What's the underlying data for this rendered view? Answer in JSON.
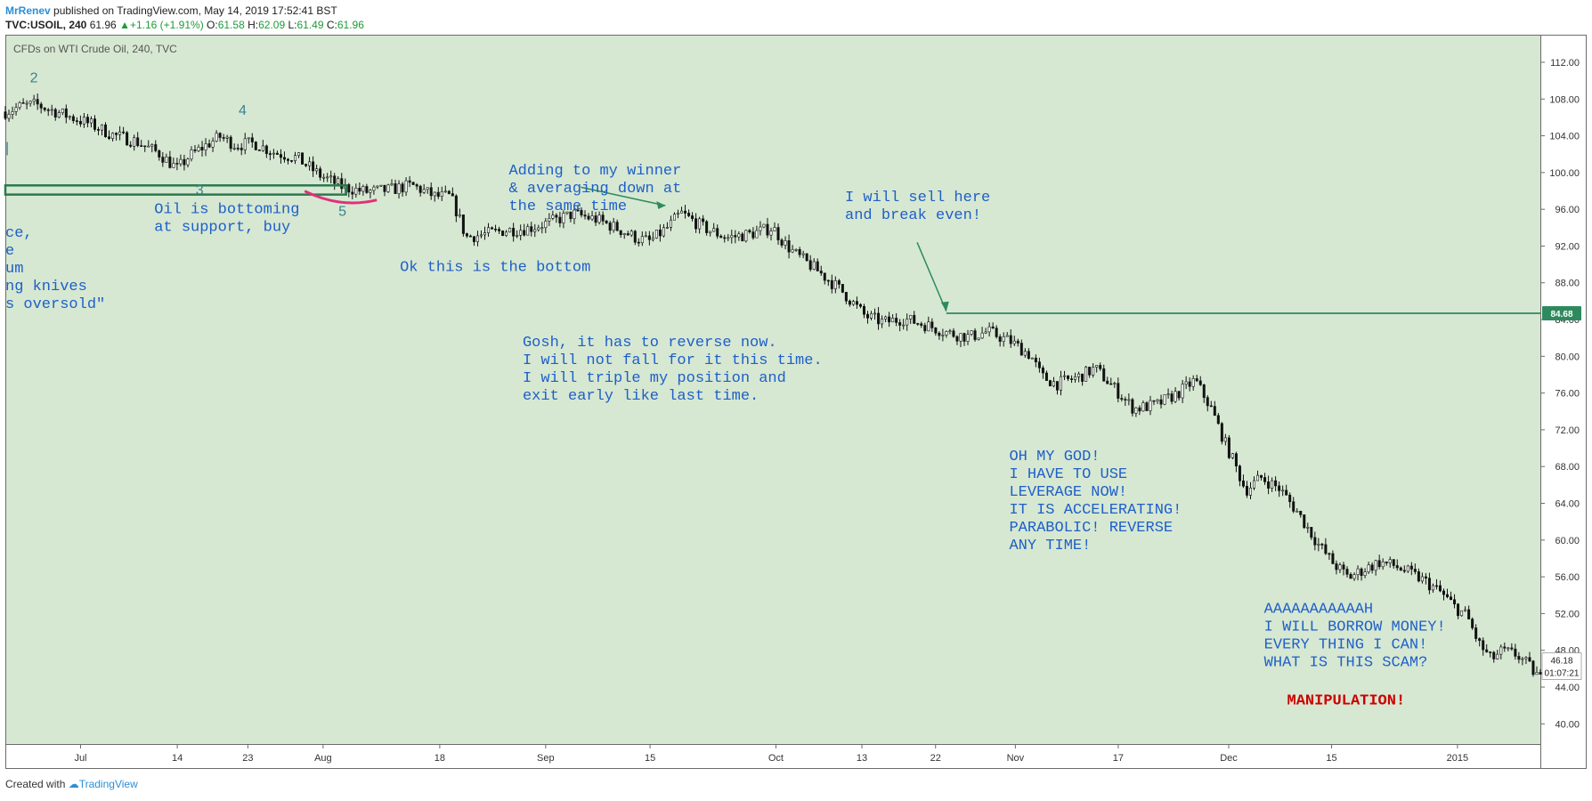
{
  "header": {
    "user": "MrRenev",
    "published": " published on TradingView.com, May 14, 2019 17:52:41 BST",
    "symbol": "TVC:USOIL, 240",
    "last": "61.96",
    "change_arrow": "▲",
    "change": "+1.16 (+1.91%)",
    "o_label": "O:",
    "o_val": "61.58",
    "h_label": "H:",
    "h_val": "62.09",
    "l_label": "L:",
    "l_val": "61.49",
    "c_label": "C:",
    "c_val": "61.96"
  },
  "footer": {
    "created": "Created with ",
    "brand": "TradingView"
  },
  "colors": {
    "plot_bg": "#d6e8d2",
    "annotation": "#1f5fc9",
    "manipulation": "#cc0000",
    "line_green": "#2e8a5e",
    "wave_label": "#3a8290",
    "arc": "#e0307a"
  },
  "chart_data": {
    "type": "candlestick",
    "title": "CFDs on WTI Crude Oil, 240, TVC",
    "x_ticks": [
      "Jul",
      "14",
      "23",
      "Aug",
      "18",
      "Sep",
      "15",
      "Oct",
      "13",
      "22",
      "Nov",
      "17",
      "Dec",
      "15",
      "2015"
    ],
    "y_ticks": [
      "112.00",
      "108.00",
      "104.00",
      "100.00",
      "96.00",
      "92.00",
      "88.00",
      "84.00",
      "80.00",
      "76.00",
      "72.00",
      "68.00",
      "64.00",
      "60.00",
      "56.00",
      "52.00",
      "48.00",
      "44.00",
      "40.00"
    ],
    "ylim": [
      37.8,
      115.0
    ],
    "price_path": [
      [
        0.0,
        106.6
      ],
      [
        0.01,
        107.2
      ],
      [
        0.02,
        107.4
      ],
      [
        0.04,
        106.2
      ],
      [
        0.055,
        105.3
      ],
      [
        0.07,
        104.1
      ],
      [
        0.085,
        103.4
      ],
      [
        0.1,
        102.1
      ],
      [
        0.112,
        100.4
      ],
      [
        0.12,
        101.8
      ],
      [
        0.13,
        102.9
      ],
      [
        0.14,
        103.9
      ],
      [
        0.15,
        103.0
      ],
      [
        0.162,
        103.2
      ],
      [
        0.175,
        102.2
      ],
      [
        0.19,
        101.6
      ],
      [
        0.205,
        99.7
      ],
      [
        0.22,
        98.4
      ],
      [
        0.235,
        97.9
      ],
      [
        0.25,
        98.1
      ],
      [
        0.265,
        98.6
      ],
      [
        0.28,
        97.4
      ],
      [
        0.29,
        97.4
      ],
      [
        0.296,
        94.9
      ],
      [
        0.3,
        93.0
      ],
      [
        0.31,
        93.2
      ],
      [
        0.325,
        93.7
      ],
      [
        0.34,
        93.9
      ],
      [
        0.355,
        94.6
      ],
      [
        0.37,
        95.5
      ],
      [
        0.385,
        94.9
      ],
      [
        0.4,
        93.8
      ],
      [
        0.412,
        92.8
      ],
      [
        0.42,
        92.5
      ],
      [
        0.432,
        94.1
      ],
      [
        0.44,
        95.6
      ],
      [
        0.455,
        94.0
      ],
      [
        0.47,
        92.9
      ],
      [
        0.485,
        93.3
      ],
      [
        0.5,
        94.0
      ],
      [
        0.507,
        92.4
      ],
      [
        0.515,
        91.1
      ],
      [
        0.53,
        89.2
      ],
      [
        0.545,
        87.1
      ],
      [
        0.56,
        84.4
      ],
      [
        0.572,
        83.7
      ],
      [
        0.585,
        84.1
      ],
      [
        0.6,
        83.4
      ],
      [
        0.615,
        82.5
      ],
      [
        0.628,
        82.1
      ],
      [
        0.64,
        82.7
      ],
      [
        0.655,
        81.6
      ],
      [
        0.668,
        80.1
      ],
      [
        0.675,
        77.8
      ],
      [
        0.685,
        77.0
      ],
      [
        0.7,
        77.8
      ],
      [
        0.71,
        78.7
      ],
      [
        0.722,
        76.6
      ],
      [
        0.735,
        74.3
      ],
      [
        0.75,
        74.7
      ],
      [
        0.765,
        76.1
      ],
      [
        0.775,
        77.4
      ],
      [
        0.785,
        74.5
      ],
      [
        0.795,
        70.4
      ],
      [
        0.8,
        68.6
      ],
      [
        0.808,
        65.4
      ],
      [
        0.818,
        66.8
      ],
      [
        0.83,
        65.6
      ],
      [
        0.842,
        63.0
      ],
      [
        0.855,
        59.6
      ],
      [
        0.865,
        57.5
      ],
      [
        0.875,
        55.9
      ],
      [
        0.885,
        56.8
      ],
      [
        0.895,
        57.6
      ],
      [
        0.905,
        57.2
      ],
      [
        0.915,
        56.4
      ],
      [
        0.925,
        55.5
      ],
      [
        0.935,
        54.3
      ],
      [
        0.945,
        52.6
      ],
      [
        0.952,
        51.8
      ],
      [
        0.96,
        48.7
      ],
      [
        0.968,
        47.0
      ],
      [
        0.975,
        47.9
      ],
      [
        0.985,
        47.5
      ],
      [
        0.993,
        46.2
      ],
      [
        1.0,
        44.9
      ]
    ],
    "price_label": "84.68",
    "price_label_value": 84.68,
    "last_price_label": "46.18",
    "last_price_value": 46.18,
    "timer_label": "01:07:21",
    "support_band_values": [
      98.6,
      97.6
    ],
    "wave_labels": [
      {
        "text": "2",
        "x": 0.016,
        "y": 109.8
      },
      {
        "text": "4",
        "x": 0.152,
        "y": 106.3
      },
      {
        "text": "3",
        "x": 0.124,
        "y": 97.6
      },
      {
        "text": "5",
        "x": 0.217,
        "y": 95.3
      },
      {
        "text": "|",
        "x": 0.0,
        "y": 102.2
      }
    ],
    "annotations": [
      {
        "lines": [
          "ce,",
          "e",
          "um",
          "ng knives",
          "s oversold\""
        ],
        "x": 0.0,
        "y": 93.0
      },
      {
        "lines": [
          "Oil is bottoming",
          "at support, buy"
        ],
        "x": 0.097,
        "y": 95.6
      },
      {
        "lines": [
          "Adding to my winner",
          "& averaging down at",
          "the same time"
        ],
        "x": 0.328,
        "y": 99.8
      },
      {
        "lines": [
          "Ok this is the bottom"
        ],
        "x": 0.257,
        "y": 89.3
      },
      {
        "lines": [
          "I will sell here",
          "and break even!"
        ],
        "x": 0.547,
        "y": 96.9
      },
      {
        "lines": [
          "Gosh, it has to reverse now.",
          "I will not fall for it this time.",
          "I will triple my position and",
          "exit early like last time."
        ],
        "x": 0.337,
        "y": 81.1
      },
      {
        "lines": [
          "OH MY GOD!",
          "I HAVE TO USE",
          "LEVERAGE NOW!",
          "IT IS ACCELERATING!",
          "PARABOLIC! REVERSE",
          "ANY TIME!"
        ],
        "x": 0.654,
        "y": 68.7
      },
      {
        "lines": [
          "AAAAAAAAAAAH",
          "I WILL BORROW MONEY!",
          "EVERY THING I CAN!",
          "WHAT IS THIS SCAM?"
        ],
        "x": 0.82,
        "y": 52.1
      }
    ],
    "manipulation_text": "MANIPULATION!",
    "manipulation_pos": {
      "x": 0.835,
      "y": 42.1
    }
  }
}
